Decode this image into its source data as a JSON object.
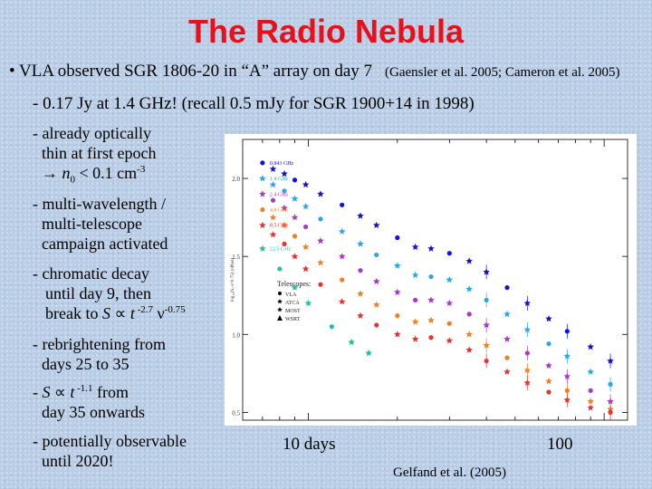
{
  "slide": {
    "title": "The Radio Nebula",
    "line1_main": "• VLA observed SGR 1806-20 in “A” array on day 7",
    "line1_ref": "(Gaensler et al. 2005; Cameron et al. 2005)",
    "line2": "- 0.17 Jy at 1.4 GHz!  (recall 0.5 mJy for SGR 1900+14 in 1998)",
    "b1_l1": "- already optically",
    "b1_l2": "thin at first epoch",
    "b1_l3_arrow": "→ ",
    "b1_l3_n": "n",
    "b1_l3_sub": "0",
    "b1_l3_rest": " < 0.1 cm",
    "b1_l3_sup": "-3",
    "b2_l1": "- multi-wavelength /",
    "b2_l2": "multi-telescope",
    "b2_l3": "campaign activated",
    "b3_l1": "- chromatic decay",
    "b3_l2": "until day 9, then",
    "b3_l3_a": "break to ",
    "b3_l3_S": "S",
    "b3_l3_prop": " ∝ ",
    "b3_l3_t": "t",
    "b3_l3_exp1": " -2.7",
    "b3_l3_nu": " ν",
    "b3_l3_exp2": "-0.75",
    "b4_l1": "- rebrightening from",
    "b4_l2": "days 25 to 35",
    "b5_l1_a": "- ",
    "b5_l1_S": "S",
    "b5_l1_prop": " ∝ ",
    "b5_l1_t": "t",
    "b5_l1_exp": " -1.1",
    "b5_l1_rest": " from",
    "b5_l2": "day 35 onwards",
    "b6_l1": "- potentially observable",
    "b6_l2": "until 2020!",
    "axis_left": "10 days",
    "axis_right": "100",
    "credit": "Gelfand et al. (2005)"
  },
  "chart_data": {
    "type": "scatter",
    "title": "",
    "xlabel": "",
    "ylabel": "log₁₀(Sᵥ·ν^0.75) (offset)",
    "x_scale": "log",
    "xlim": [
      6,
      120
    ],
    "ylim": [
      0.45,
      2.25
    ],
    "yticks": [
      0.5,
      1.0,
      1.5,
      2.0
    ],
    "legend": {
      "title": "Telescopes:",
      "entries": [
        {
          "marker": "circle",
          "label": "VLA"
        },
        {
          "marker": "star",
          "label": "ATCA"
        },
        {
          "marker": "star",
          "label": "MOST"
        },
        {
          "marker": "triangle",
          "label": "WSRT"
        }
      ],
      "position": "middle-left"
    },
    "series": [
      {
        "name": "0.8 GHz",
        "color": "#1010e0",
        "label": "0.843 GHz",
        "x": [
          7,
          7.6,
          8.3,
          9,
          9.8,
          11,
          13,
          15,
          17,
          20,
          23,
          26,
          30,
          35,
          40,
          47,
          55,
          65,
          75,
          90,
          105
        ],
        "y": [
          2.1,
          2.06,
          2.03,
          1.99,
          1.96,
          1.9,
          1.83,
          1.76,
          1.7,
          1.62,
          1.56,
          1.55,
          1.52,
          1.47,
          1.4,
          1.3,
          1.2,
          1.1,
          1.02,
          0.92,
          0.83
        ]
      },
      {
        "name": "1.4 GHz",
        "color": "#28a8e8",
        "label": "1.4 GHz",
        "x": [
          7,
          7.6,
          8.3,
          9,
          9.8,
          11,
          13,
          15,
          17,
          20,
          23,
          26,
          30,
          35,
          40,
          47,
          55,
          65,
          75,
          90,
          105
        ],
        "y": [
          2.0,
          1.96,
          1.92,
          1.87,
          1.82,
          1.74,
          1.66,
          1.58,
          1.51,
          1.44,
          1.38,
          1.37,
          1.35,
          1.29,
          1.22,
          1.13,
          1.03,
          0.94,
          0.86,
          0.76,
          0.68
        ]
      },
      {
        "name": "2.4 GHz",
        "color": "#a838c8",
        "label": "2.4 GHz",
        "x": [
          7,
          7.6,
          8.3,
          9,
          9.8,
          11,
          13,
          15,
          17,
          20,
          23,
          26,
          30,
          35,
          40,
          47,
          55,
          65,
          75,
          90,
          105
        ],
        "y": [
          1.9,
          1.86,
          1.81,
          1.75,
          1.69,
          1.6,
          1.5,
          1.41,
          1.34,
          1.27,
          1.22,
          1.22,
          1.2,
          1.13,
          1.06,
          0.97,
          0.88,
          0.8,
          0.73,
          0.64,
          0.57
        ]
      },
      {
        "name": "4.8 GHz",
        "color": "#f08020",
        "label": "4.8 GHz",
        "x": [
          7,
          7.6,
          8.3,
          9,
          9.8,
          11,
          13,
          15,
          17,
          20,
          23,
          26,
          30,
          35,
          40,
          47,
          55,
          65,
          75,
          90,
          105
        ],
        "y": [
          1.8,
          1.75,
          1.7,
          1.63,
          1.56,
          1.46,
          1.35,
          1.26,
          1.19,
          1.12,
          1.08,
          1.09,
          1.07,
          1.0,
          0.93,
          0.85,
          0.77,
          0.7,
          0.64,
          0.57,
          0.52
        ]
      },
      {
        "name": "8.5 GHz",
        "color": "#e83030",
        "label": "8.5 GHz",
        "x": [
          7,
          7.6,
          8.3,
          9,
          9.8,
          11,
          13,
          15,
          17,
          20,
          23,
          26,
          30,
          35,
          40,
          47,
          55,
          65,
          75,
          90,
          105
        ],
        "y": [
          1.7,
          1.64,
          1.58,
          1.5,
          1.42,
          1.32,
          1.21,
          1.12,
          1.06,
          1.0,
          0.97,
          0.98,
          0.96,
          0.9,
          0.83,
          0.76,
          0.69,
          0.63,
          0.58,
          0.53,
          0.5
        ]
      },
      {
        "name": "22 GHz",
        "color": "#20c0a0",
        "label": "22.5 GHz",
        "x": [
          7,
          8,
          9,
          10,
          12,
          14,
          16
        ],
        "y": [
          1.55,
          1.42,
          1.3,
          1.2,
          1.05,
          0.95,
          0.88
        ]
      }
    ]
  }
}
